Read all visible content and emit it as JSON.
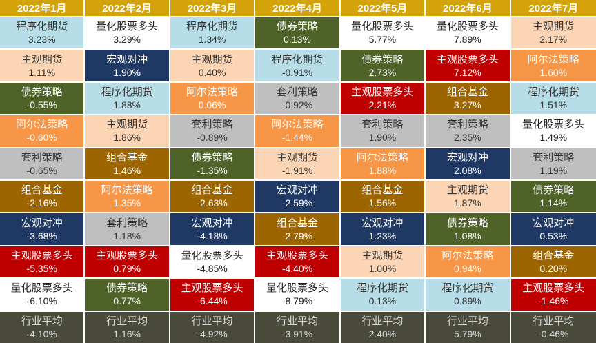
{
  "colors": {
    "header_bg": "#d4a30a",
    "header_text": "#ffffff",
    "average_bg": "#4a4a3a",
    "average_text": "#d9d9d9",
    "strategy_palette": {
      "程序化期货": {
        "bg": "#b7dee8",
        "fg": "#333333"
      },
      "量化股票多头": {
        "bg": "#ffffff",
        "fg": "#222222"
      },
      "主观期货": {
        "bg": "#fcd5b5",
        "fg": "#333333"
      },
      "宏观对冲": {
        "bg": "#1f3864",
        "fg": "#ffffff"
      },
      "债券策略": {
        "bg": "#4f6228",
        "fg": "#ffffff"
      },
      "阿尔法策略": {
        "bg": "#f79646",
        "fg": "#ffffff"
      },
      "套利策略": {
        "bg": "#bfbfbf",
        "fg": "#333333"
      },
      "组合基金": {
        "bg": "#9c6500",
        "fg": "#ffffff"
      },
      "主观股票多头": {
        "bg": "#c00000",
        "fg": "#ffffff"
      }
    }
  },
  "chart_data": {
    "type": "table",
    "columns": [
      "2022年1月",
      "2022年2月",
      "2022年3月",
      "2022年4月",
      "2022年5月",
      "2022年6月",
      "2022年7月"
    ],
    "rows": [
      [
        {
          "name": "程序化期货",
          "value": "3.23%"
        },
        {
          "name": "量化股票多头",
          "value": "3.29%"
        },
        {
          "name": "程序化期货",
          "value": "1.34%"
        },
        {
          "name": "债券策略",
          "value": "0.13%"
        },
        {
          "name": "量化股票多头",
          "value": "5.77%"
        },
        {
          "name": "量化股票多头",
          "value": "7.89%"
        },
        {
          "name": "主观期货",
          "value": "2.17%"
        }
      ],
      [
        {
          "name": "主观期货",
          "value": "1.11%"
        },
        {
          "name": "宏观对冲",
          "value": "1.90%"
        },
        {
          "name": "主观期货",
          "value": "0.40%"
        },
        {
          "name": "程序化期货",
          "value": "-0.91%"
        },
        {
          "name": "债券策略",
          "value": "2.73%"
        },
        {
          "name": "主观股票多头",
          "value": "7.12%"
        },
        {
          "name": "阿尔法策略",
          "value": "1.60%"
        }
      ],
      [
        {
          "name": "债券策略",
          "value": "-0.55%"
        },
        {
          "name": "程序化期货",
          "value": "1.88%"
        },
        {
          "name": "阿尔法策略",
          "value": "0.06%"
        },
        {
          "name": "套利策略",
          "value": "-0.92%"
        },
        {
          "name": "主观股票多头",
          "value": "2.21%"
        },
        {
          "name": "组合基金",
          "value": "3.27%"
        },
        {
          "name": "程序化期货",
          "value": "1.51%"
        }
      ],
      [
        {
          "name": "阿尔法策略",
          "value": "-0.60%"
        },
        {
          "name": "主观期货",
          "value": "1.86%"
        },
        {
          "name": "套利策略",
          "value": "-0.89%"
        },
        {
          "name": "阿尔法策略",
          "value": "-1.44%"
        },
        {
          "name": "套利策略",
          "value": "1.90%"
        },
        {
          "name": "套利策略",
          "value": "2.35%"
        },
        {
          "name": "量化股票多头",
          "value": "1.49%"
        }
      ],
      [
        {
          "name": "套利策略",
          "value": "-0.65%"
        },
        {
          "name": "组合基金",
          "value": "1.46%"
        },
        {
          "name": "债券策略",
          "value": "-1.35%"
        },
        {
          "name": "主观期货",
          "value": "-1.91%"
        },
        {
          "name": "阿尔法策略",
          "value": "1.88%"
        },
        {
          "name": "宏观对冲",
          "value": "2.08%"
        },
        {
          "name": "套利策略",
          "value": "1.19%"
        }
      ],
      [
        {
          "name": "组合基金",
          "value": "-2.16%"
        },
        {
          "name": "阿尔法策略",
          "value": "1.35%"
        },
        {
          "name": "组合基金",
          "value": "-2.63%"
        },
        {
          "name": "宏观对冲",
          "value": "-2.59%"
        },
        {
          "name": "组合基金",
          "value": "1.56%"
        },
        {
          "name": "主观期货",
          "value": "1.87%"
        },
        {
          "name": "债券策略",
          "value": "1.14%"
        }
      ],
      [
        {
          "name": "宏观对冲",
          "value": "-3.68%"
        },
        {
          "name": "套利策略",
          "value": "1.18%"
        },
        {
          "name": "宏观对冲",
          "value": "-4.18%"
        },
        {
          "name": "组合基金",
          "value": "-2.79%"
        },
        {
          "name": "宏观对冲",
          "value": "1.23%"
        },
        {
          "name": "债券策略",
          "value": "1.08%"
        },
        {
          "name": "宏观对冲",
          "value": "0.53%"
        }
      ],
      [
        {
          "name": "主观股票多头",
          "value": "-5.35%"
        },
        {
          "name": "主观股票多头",
          "value": "0.79%"
        },
        {
          "name": "量化股票多头",
          "value": "-4.85%"
        },
        {
          "name": "主观股票多头",
          "value": "-4.40%"
        },
        {
          "name": "主观期货",
          "value": "1.00%"
        },
        {
          "name": "阿尔法策略",
          "value": "0.94%"
        },
        {
          "name": "组合基金",
          "value": "0.20%"
        }
      ],
      [
        {
          "name": "量化股票多头",
          "value": "-6.10%"
        },
        {
          "name": "债券策略",
          "value": "0.77%"
        },
        {
          "name": "主观股票多头",
          "value": "-6.44%"
        },
        {
          "name": "量化股票多头",
          "value": "-8.79%"
        },
        {
          "name": "程序化期货",
          "value": "0.13%"
        },
        {
          "name": "程序化期货",
          "value": "0.89%"
        },
        {
          "name": "主观股票多头",
          "value": "-1.46%"
        }
      ]
    ],
    "average_row": [
      {
        "name": "行业平均",
        "value": "-4.10%"
      },
      {
        "name": "行业平均",
        "value": "1.16%"
      },
      {
        "name": "行业平均",
        "value": "-4.92%"
      },
      {
        "name": "行业平均",
        "value": "-3.91%"
      },
      {
        "name": "行业平均",
        "value": "2.40%"
      },
      {
        "name": "行业平均",
        "value": "5.79%"
      },
      {
        "name": "行业平均",
        "value": "-0.46%"
      }
    ]
  }
}
